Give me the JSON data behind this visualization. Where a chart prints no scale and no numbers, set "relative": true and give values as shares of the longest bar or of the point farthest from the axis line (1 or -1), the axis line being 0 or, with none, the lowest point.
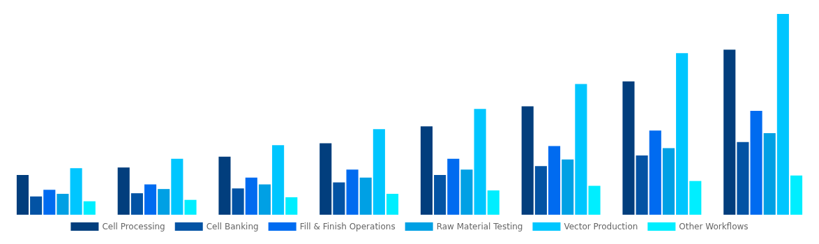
{
  "chart_data": {
    "type": "bar",
    "relative": true,
    "categories": [
      null,
      null,
      null,
      null,
      null,
      null,
      null,
      null
    ],
    "legend": "bottom",
    "series": [
      {
        "name": "Cell Processing",
        "color": "#023e7d",
        "values": [
          0.198,
          0.235,
          0.289,
          0.356,
          0.44,
          0.54,
          0.664,
          0.822
        ]
      },
      {
        "name": "Cell Banking",
        "color": "#0353a4",
        "values": [
          0.091,
          0.107,
          0.131,
          0.161,
          0.198,
          0.242,
          0.295,
          0.362
        ]
      },
      {
        "name": "Fill & Finish Operations",
        "color": "#006bf0",
        "values": [
          0.124,
          0.151,
          0.185,
          0.225,
          0.279,
          0.342,
          0.419,
          0.517
        ]
      },
      {
        "name": "Raw Material Testing",
        "color": "#00a0e4",
        "values": [
          0.104,
          0.128,
          0.151,
          0.185,
          0.225,
          0.275,
          0.332,
          0.406
        ]
      },
      {
        "name": "Vector Production",
        "color": "#00c6ff",
        "values": [
          0.232,
          0.279,
          0.346,
          0.426,
          0.527,
          0.651,
          0.805,
          1
        ]
      },
      {
        "name": "Other Workflows",
        "color": "#00eeff",
        "values": [
          0.067,
          0.074,
          0.087,
          0.104,
          0.121,
          0.144,
          0.168,
          0.195
        ]
      }
    ]
  }
}
